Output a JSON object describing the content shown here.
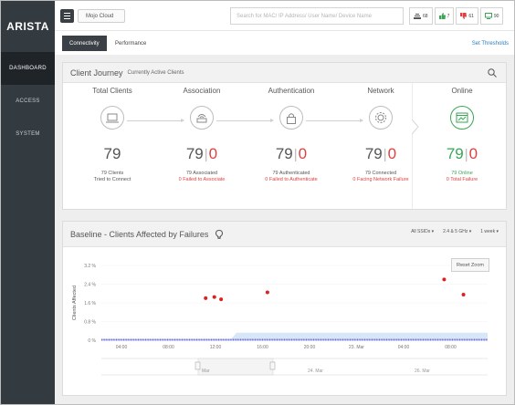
{
  "sidebar": {
    "logo": "ARISTA",
    "items": [
      {
        "label": "DASHBOARD"
      },
      {
        "label": "ACCESS"
      },
      {
        "label": "SYSTEM"
      }
    ]
  },
  "topbar": {
    "breadcrumb": "Mojo Cloud",
    "search_placeholder": "Search for MAC/ IP Address/ User Name/ Device Name",
    "badges": [
      {
        "icon": "wifi-icon",
        "count": "68",
        "color": "#555555"
      },
      {
        "icon": "thumbs-up-icon",
        "count": "7",
        "color": "#3aa654"
      },
      {
        "icon": "thumbs-down-icon",
        "count": "61",
        "color": "#e04040"
      },
      {
        "icon": "monitor-icon",
        "count": "90",
        "color": "#3aa654"
      }
    ]
  },
  "subnav": {
    "tabs": [
      {
        "label": "Connectivity"
      },
      {
        "label": "Performance"
      }
    ],
    "set_thresholds": "Set Thresholds"
  },
  "journey": {
    "title": "Client Journey",
    "subtitle": "Currently Active Clients",
    "stages": [
      {
        "title": "Total Clients",
        "icon": "laptop-icon",
        "count": "79",
        "line1": "79 Clients",
        "line2": "Tried to Connect"
      },
      {
        "title": "Association",
        "icon": "router-icon",
        "count": "79",
        "fail": "0",
        "line1": "79 Associated",
        "line2": "0 Failed to Associate"
      },
      {
        "title": "Authentication",
        "icon": "lock-icon",
        "count": "79",
        "fail": "0",
        "line1": "79 Authenticated",
        "line2": "0 Failed to Authenticate"
      },
      {
        "title": "Network",
        "icon": "gear-icon",
        "count": "79",
        "fail": "0",
        "line1": "79 Connected",
        "line2": "0 Facing Network Failure"
      },
      {
        "title": "Online",
        "icon": "browser-icon",
        "count": "79",
        "fail": "0",
        "line1": "79 Online",
        "line2": "0 Total Failure"
      }
    ]
  },
  "baseline": {
    "title": "Baseline - Clients Affected by Failures",
    "filters": [
      "All SSIDs",
      "2.4 & 5 GHz",
      "1 week"
    ],
    "reset_zoom": "Reset Zoom",
    "navigator_labels": [
      "Mar",
      "24. Mar",
      "26. Mar"
    ]
  },
  "chart_data": {
    "type": "scatter",
    "title": "",
    "xlabel": "",
    "ylabel": "Clients Affected",
    "y_ticks": [
      "3.2 %",
      "2.4 %",
      "1.6 %",
      "0.8 %",
      "0 %"
    ],
    "ylim": [
      0,
      3.2
    ],
    "x_ticks": [
      "04:00",
      "08:00",
      "12:00",
      "16:00",
      "20:00",
      "23. Mar",
      "04:00",
      "08:00"
    ],
    "xlim": [
      0,
      40
    ],
    "series": [
      {
        "values": [
          {
            "x": 10.8,
            "y": 1.8
          },
          {
            "x": 11.7,
            "y": 1.85
          },
          {
            "x": 12.4,
            "y": 1.75
          },
          {
            "x": 17.2,
            "y": 2.05
          },
          {
            "x": 35.5,
            "y": 2.6
          },
          {
            "x": 37.5,
            "y": 1.95
          }
        ]
      }
    ],
    "colors": {
      "points": "#e02020",
      "baseline": "#6a6ed6",
      "band": "#d7e7f7"
    }
  }
}
